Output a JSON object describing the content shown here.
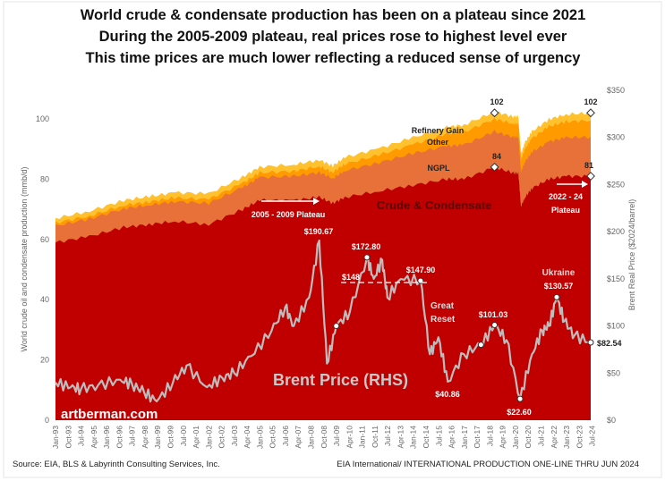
{
  "titles": [
    "World crude & condensate production has been on a plateau since 2021",
    "During the 2005-2009 plateau, real prices rose to highest level ever",
    "This time prices are much lower reflecting a reduced sense of urgency"
  ],
  "footer": {
    "source": "Source:  EIA, BLS & Labyrinth Consulting Services, Inc.",
    "right": "EIA International/ INTERNATIONAL PRODUCTION ONE-LINE THRU JUN 2024"
  },
  "watermark": "artberman.com",
  "colors": {
    "crude": "#C00000",
    "ngpl": "#E8713A",
    "other": "#FF9A00",
    "refinery_gain": "#FFC22E",
    "brent": "#BDBDBD"
  },
  "chart_data": {
    "type": "area",
    "ylabel": "World crude oil and condensate production (mmb/d)",
    "y2label": "Brent Real Price ($2024/barrel)",
    "ylim": [
      0,
      110
    ],
    "y2lim": [
      0,
      350
    ],
    "yticks": [
      "0",
      "20",
      "40",
      "60",
      "80",
      "100"
    ],
    "y2ticks": [
      "$0",
      "$50",
      "$100",
      "$150",
      "$200",
      "$250",
      "$300",
      "$350"
    ],
    "xticks": [
      "Jan-93",
      "Oct-93",
      "Jul-94",
      "Apr-95",
      "Jan-96",
      "Oct-96",
      "Jul-97",
      "Apr-98",
      "Jan-99",
      "Oct-99",
      "Jul-00",
      "Apr-01",
      "Jan-02",
      "Oct-02",
      "Jul-03",
      "Apr-04",
      "Jan-05",
      "Oct-05",
      "Jul-06",
      "Apr-07",
      "Jan-08",
      "Oct-08",
      "Jul-09",
      "Apr-10",
      "Jan-11",
      "Oct-11",
      "Jul-12",
      "Apr-13",
      "Jan-14",
      "Oct-14",
      "Jul-15",
      "Apr-16",
      "Jan-17",
      "Oct-17",
      "Jul-18",
      "Apr-19",
      "Jan-20",
      "Oct-20",
      "Jul-21",
      "Apr-22",
      "Jan-23",
      "Oct-23",
      "Jul-24"
    ],
    "production": {
      "dates": [
        1993.0,
        1995.0,
        1997.0,
        1998.5,
        2000.0,
        2002.0,
        2004.0,
        2005.0,
        2007.0,
        2008.5,
        2009.3,
        2010.0,
        2012.0,
        2014.0,
        2016.0,
        2017.0,
        2018.8,
        2019.9,
        2020.2,
        2020.35,
        2020.6,
        2021.0,
        2022.0,
        2023.0,
        2024.45
      ],
      "series": [
        {
          "name": "Crude & Condensate",
          "values": [
            59,
            61,
            64,
            65,
            66,
            65,
            70,
            73,
            73,
            74,
            72,
            74,
            76,
            78,
            80,
            80,
            84,
            82,
            82,
            71,
            74,
            77,
            80,
            81,
            81
          ]
        },
        {
          "name": "NGPL",
          "values": [
            5.5,
            5.8,
            6.2,
            6.4,
            6.6,
            7,
            7.3,
            7.6,
            8,
            8.2,
            8.3,
            8.8,
            9.5,
            10.5,
            11,
            11.4,
            11.8,
            12,
            12,
            11.5,
            11.8,
            12,
            12.5,
            12.8,
            13
          ]
        },
        {
          "name": "Other",
          "values": [
            1,
            1,
            1.1,
            1.1,
            1.2,
            1.3,
            1.4,
            1.5,
            1.7,
            2,
            2,
            2.2,
            2.5,
            3,
            4,
            4.2,
            4.2,
            4.4,
            4.4,
            4,
            4.3,
            4.5,
            5,
            5.3,
            5.5
          ]
        },
        {
          "name": "Refinery Gain",
          "values": [
            1.5,
            1.6,
            1.7,
            1.7,
            1.8,
            1.9,
            2,
            2,
            2.1,
            2.2,
            2.1,
            2.2,
            2.2,
            2.3,
            2.3,
            2.4,
            2.4,
            2.4,
            2.4,
            2,
            2.2,
            2.3,
            2.4,
            2.4,
            2.5
          ]
        }
      ]
    },
    "brent": {
      "name": "Brent Price (RHS)",
      "dates": [
        1993.0,
        1993.9,
        1994.5,
        1995.5,
        1996.8,
        1997.5,
        1998.2,
        1998.95,
        1999.9,
        2000.7,
        2001.9,
        2002.8,
        2003.5,
        2004.5,
        2005.7,
        2006.5,
        2007.0,
        2007.9,
        2008.5,
        2008.95,
        2009.5,
        2010.3,
        2011.3,
        2011.7,
        2012.2,
        2012.5,
        2013.3,
        2014.45,
        2015.0,
        2015.5,
        2016.05,
        2017.0,
        2018.0,
        2018.8,
        2019.5,
        2020.3,
        2021.0,
        2021.6,
        2022.0,
        2022.45,
        2022.9,
        2023.5,
        2024.45
      ],
      "values": [
        40,
        35,
        33,
        37,
        43,
        38,
        30,
        20,
        40,
        58,
        35,
        45,
        50,
        68,
        95,
        120,
        100,
        130,
        190.67,
        60,
        100,
        115,
        172.8,
        150,
        170,
        130,
        150,
        147.9,
        70,
        88,
        40.86,
        70,
        80,
        101.03,
        85,
        22.6,
        70,
        95,
        100,
        130.57,
        105,
        90,
        82.54
      ]
    },
    "labels": {
      "prod_peak_1": "102",
      "prod_peak_2": "102",
      "crude_peak_1": "84",
      "crude_peak_2": "81",
      "refinery_gain": "Refinery Gain",
      "other": "Other",
      "ngpl": "NGPL",
      "crude": "Crude & Condensate",
      "plateau_2005": "2005 - 2009 Plateau",
      "plateau_2022_a": "2022 - 24",
      "plateau_2022_b": "Plateau",
      "brent": "Brent Price (RHS)",
      "p_190": "$190.67",
      "p_172": "$172.80",
      "p_148": "$148",
      "p_147": "$147.90",
      "great_reset_a": "Great",
      "great_reset_b": "Reset",
      "p_40": "$40.86",
      "p_101": "$101.03",
      "p_22": "$22.60",
      "ukraine": "Ukraine",
      "p_130": "$130.57",
      "p_82": "$82.54"
    }
  }
}
